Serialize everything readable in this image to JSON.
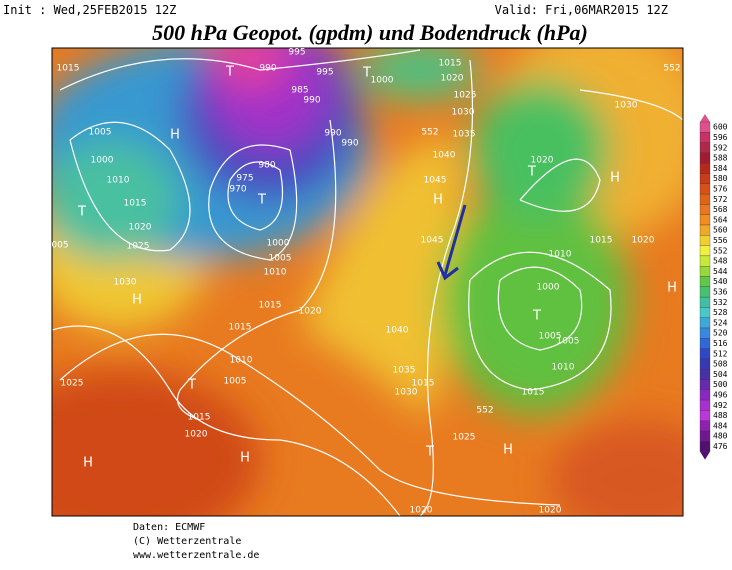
{
  "header": {
    "init": "Init : Wed,25FEB2015 12Z",
    "valid": "Valid: Fri,06MAR2015 12Z",
    "title": "500 hPa Geopot. (gpdm) und Bodendruck (hPa)"
  },
  "colorbar": {
    "ticks": [
      600,
      596,
      592,
      588,
      584,
      580,
      576,
      572,
      568,
      564,
      560,
      556,
      552,
      548,
      544,
      540,
      536,
      532,
      528,
      524,
      520,
      516,
      512,
      508,
      504,
      500,
      496,
      492,
      488,
      484,
      480,
      476
    ],
    "colors": [
      "#e0508a",
      "#c83068",
      "#b02848",
      "#a01c30",
      "#b8281c",
      "#c83c18",
      "#d85018",
      "#e06418",
      "#e87820",
      "#f08c20",
      "#f0a828",
      "#f0d030",
      "#f0f040",
      "#c8e838",
      "#98d838",
      "#60c848",
      "#48c070",
      "#40c0a0",
      "#48c8c8",
      "#40a8d8",
      "#3888e0",
      "#3068d8",
      "#3048c8",
      "#3838b0",
      "#4830a8",
      "#6828b0",
      "#8828c0",
      "#a830d0",
      "#b838d8",
      "#9020b0",
      "#701890",
      "#501070"
    ]
  },
  "map": {
    "labels": [
      "1015",
      "H",
      "1005",
      "1000",
      "1010",
      "1015",
      "T",
      "1020",
      "1025",
      "005",
      "1030",
      "H",
      "1025",
      "T",
      "1015",
      "1020",
      "1005",
      "1010",
      "1015",
      "1020",
      "1015",
      "1010",
      "1005",
      "1000",
      "T",
      "975",
      "970",
      "980",
      "990",
      "995",
      "T",
      "990",
      "985",
      "995",
      "990",
      "990",
      "1000",
      "T",
      "1015",
      "1020",
      "1025",
      "1030",
      "1035",
      "552",
      "1040",
      "1045",
      "H",
      "1045",
      "1040",
      "1035",
      "1030",
      "1015",
      "1025",
      "T",
      "H",
      "1020",
      "T",
      "H",
      "1030",
      "1015",
      "1020",
      "1010",
      "1000",
      "T",
      "1005",
      "1005",
      "1010",
      "1015",
      "552",
      "1020",
      "1020",
      "H",
      "H",
      "H",
      "552"
    ]
  },
  "footer": {
    "source": "Daten: ECMWF",
    "copyright": "(C) Wetterzentrale",
    "url": "www.wetterzentrale.de"
  }
}
